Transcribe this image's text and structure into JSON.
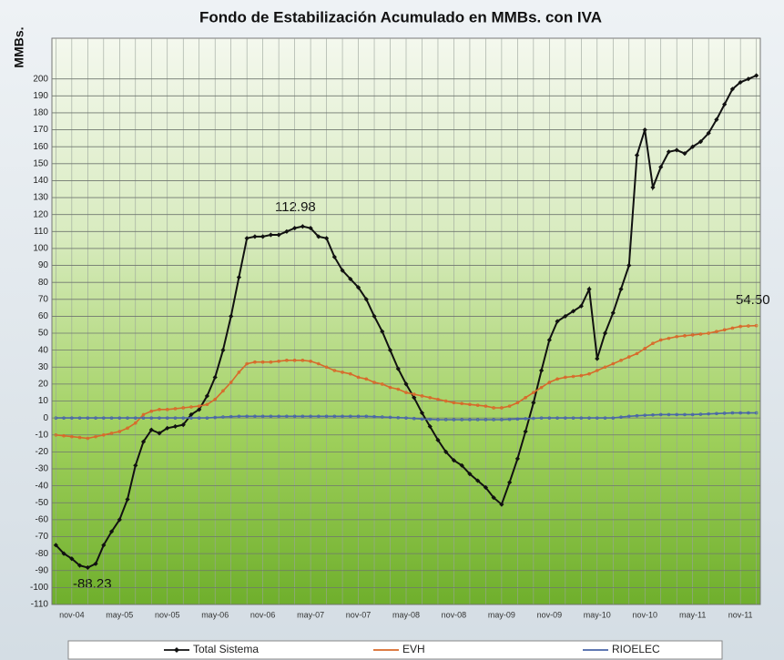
{
  "chart_data": {
    "type": "line",
    "title": "Fondo de Estabilización Acumulado en MMBs. con IVA",
    "y_label": "MMBs.",
    "categories": [
      null,
      null,
      "nov-04",
      null,
      null,
      null,
      null,
      null,
      "may-05",
      null,
      null,
      null,
      null,
      null,
      "nov-05",
      null,
      null,
      null,
      null,
      null,
      "may-06",
      null,
      null,
      null,
      null,
      null,
      "nov-06",
      null,
      null,
      null,
      null,
      null,
      "may-07",
      null,
      null,
      null,
      null,
      null,
      "nov-07",
      null,
      null,
      null,
      null,
      null,
      "may-08",
      null,
      null,
      null,
      null,
      null,
      "nov-08",
      null,
      null,
      null,
      null,
      null,
      "may-09",
      null,
      null,
      null,
      null,
      null,
      "nov-09",
      null,
      null,
      null,
      null,
      null,
      "may-10",
      null,
      null,
      null,
      null,
      null,
      "nov-10",
      null,
      null,
      null,
      null,
      null,
      "may-11",
      null,
      null,
      null,
      null,
      null,
      "nov-11",
      null,
      null
    ],
    "series": [
      {
        "name": "Total Sistema",
        "color": "#111111",
        "values": [
          -75,
          -80,
          -83,
          -87,
          -88.23,
          -86,
          -75,
          -67,
          -60,
          -48,
          -28,
          -14,
          -7,
          -9,
          -6,
          -5,
          -4,
          2,
          5,
          13,
          24,
          40,
          60,
          83,
          106,
          107,
          107,
          108,
          108,
          110,
          112,
          112.98,
          112,
          107,
          106,
          95,
          87,
          82,
          77,
          70,
          60,
          51,
          40,
          29,
          20,
          12,
          3,
          -5,
          -13,
          -20,
          -25,
          -28,
          -33,
          -37,
          -41,
          -47,
          -51,
          -38,
          -24,
          -8,
          9,
          28,
          46,
          57,
          60,
          63,
          66,
          76,
          35,
          50,
          62,
          76,
          90,
          155,
          170,
          136,
          148,
          157,
          158,
          156,
          160,
          163,
          168,
          176,
          185,
          194,
          198,
          200,
          202
        ]
      },
      {
        "name": "EVH",
        "color": "#d8692a",
        "values": [
          -10,
          -10.5,
          -11,
          -11.5,
          -12,
          -11,
          -10,
          -9,
          -8,
          -6,
          -3,
          2,
          4,
          5,
          5,
          5.5,
          6,
          6.5,
          7,
          8,
          11,
          16,
          21,
          27,
          32,
          33,
          33,
          33,
          33.5,
          34,
          34,
          34,
          33.5,
          32,
          30,
          28,
          27,
          26,
          24,
          23,
          21,
          20,
          18,
          17,
          15,
          14,
          13,
          12,
          11,
          10,
          9,
          8.5,
          8,
          7.5,
          7,
          6,
          6,
          7,
          9,
          12,
          15,
          18,
          21,
          23,
          24,
          24.5,
          25,
          26,
          28,
          30,
          32,
          34,
          36,
          38,
          41,
          44,
          46,
          47,
          48,
          48.5,
          49,
          49.5,
          50,
          51,
          52,
          53,
          54,
          54.3,
          54.5
        ]
      },
      {
        "name": "RIOELEC",
        "color": "#4a66a8",
        "values": [
          0,
          0,
          0,
          0,
          0,
          0,
          0,
          0,
          0,
          0,
          0,
          0,
          0,
          0,
          0,
          0,
          0,
          0,
          0,
          0,
          0.3,
          0.6,
          0.8,
          1,
          1,
          1,
          1,
          1,
          1,
          1,
          1,
          1,
          1,
          1,
          1,
          1,
          1,
          1,
          1,
          1,
          0.8,
          0.6,
          0.4,
          0.2,
          0,
          -0.3,
          -0.6,
          -0.8,
          -1,
          -1,
          -1,
          -1,
          -1,
          -1,
          -1,
          -1,
          -1,
          -0.8,
          -0.6,
          -0.4,
          -0.2,
          0,
          0,
          0,
          0,
          0,
          0,
          0,
          0,
          0,
          0,
          0.5,
          1,
          1.3,
          1.6,
          1.8,
          2,
          2,
          2,
          2,
          2,
          2.2,
          2.4,
          2.6,
          2.8,
          3,
          3,
          3,
          3
        ]
      }
    ],
    "annotations": [
      "112.98",
      "-88.23",
      "54.50"
    ],
    "ylim": [
      -110,
      224
    ],
    "yticks": [
      -110,
      -100,
      -90,
      -80,
      -70,
      -60,
      -50,
      -40,
      -30,
      -20,
      -10,
      0,
      10,
      20,
      30,
      40,
      50,
      60,
      70,
      80,
      90,
      100,
      110,
      120,
      130,
      140,
      150,
      160,
      170,
      180,
      190,
      200
    ],
    "grid": true
  }
}
